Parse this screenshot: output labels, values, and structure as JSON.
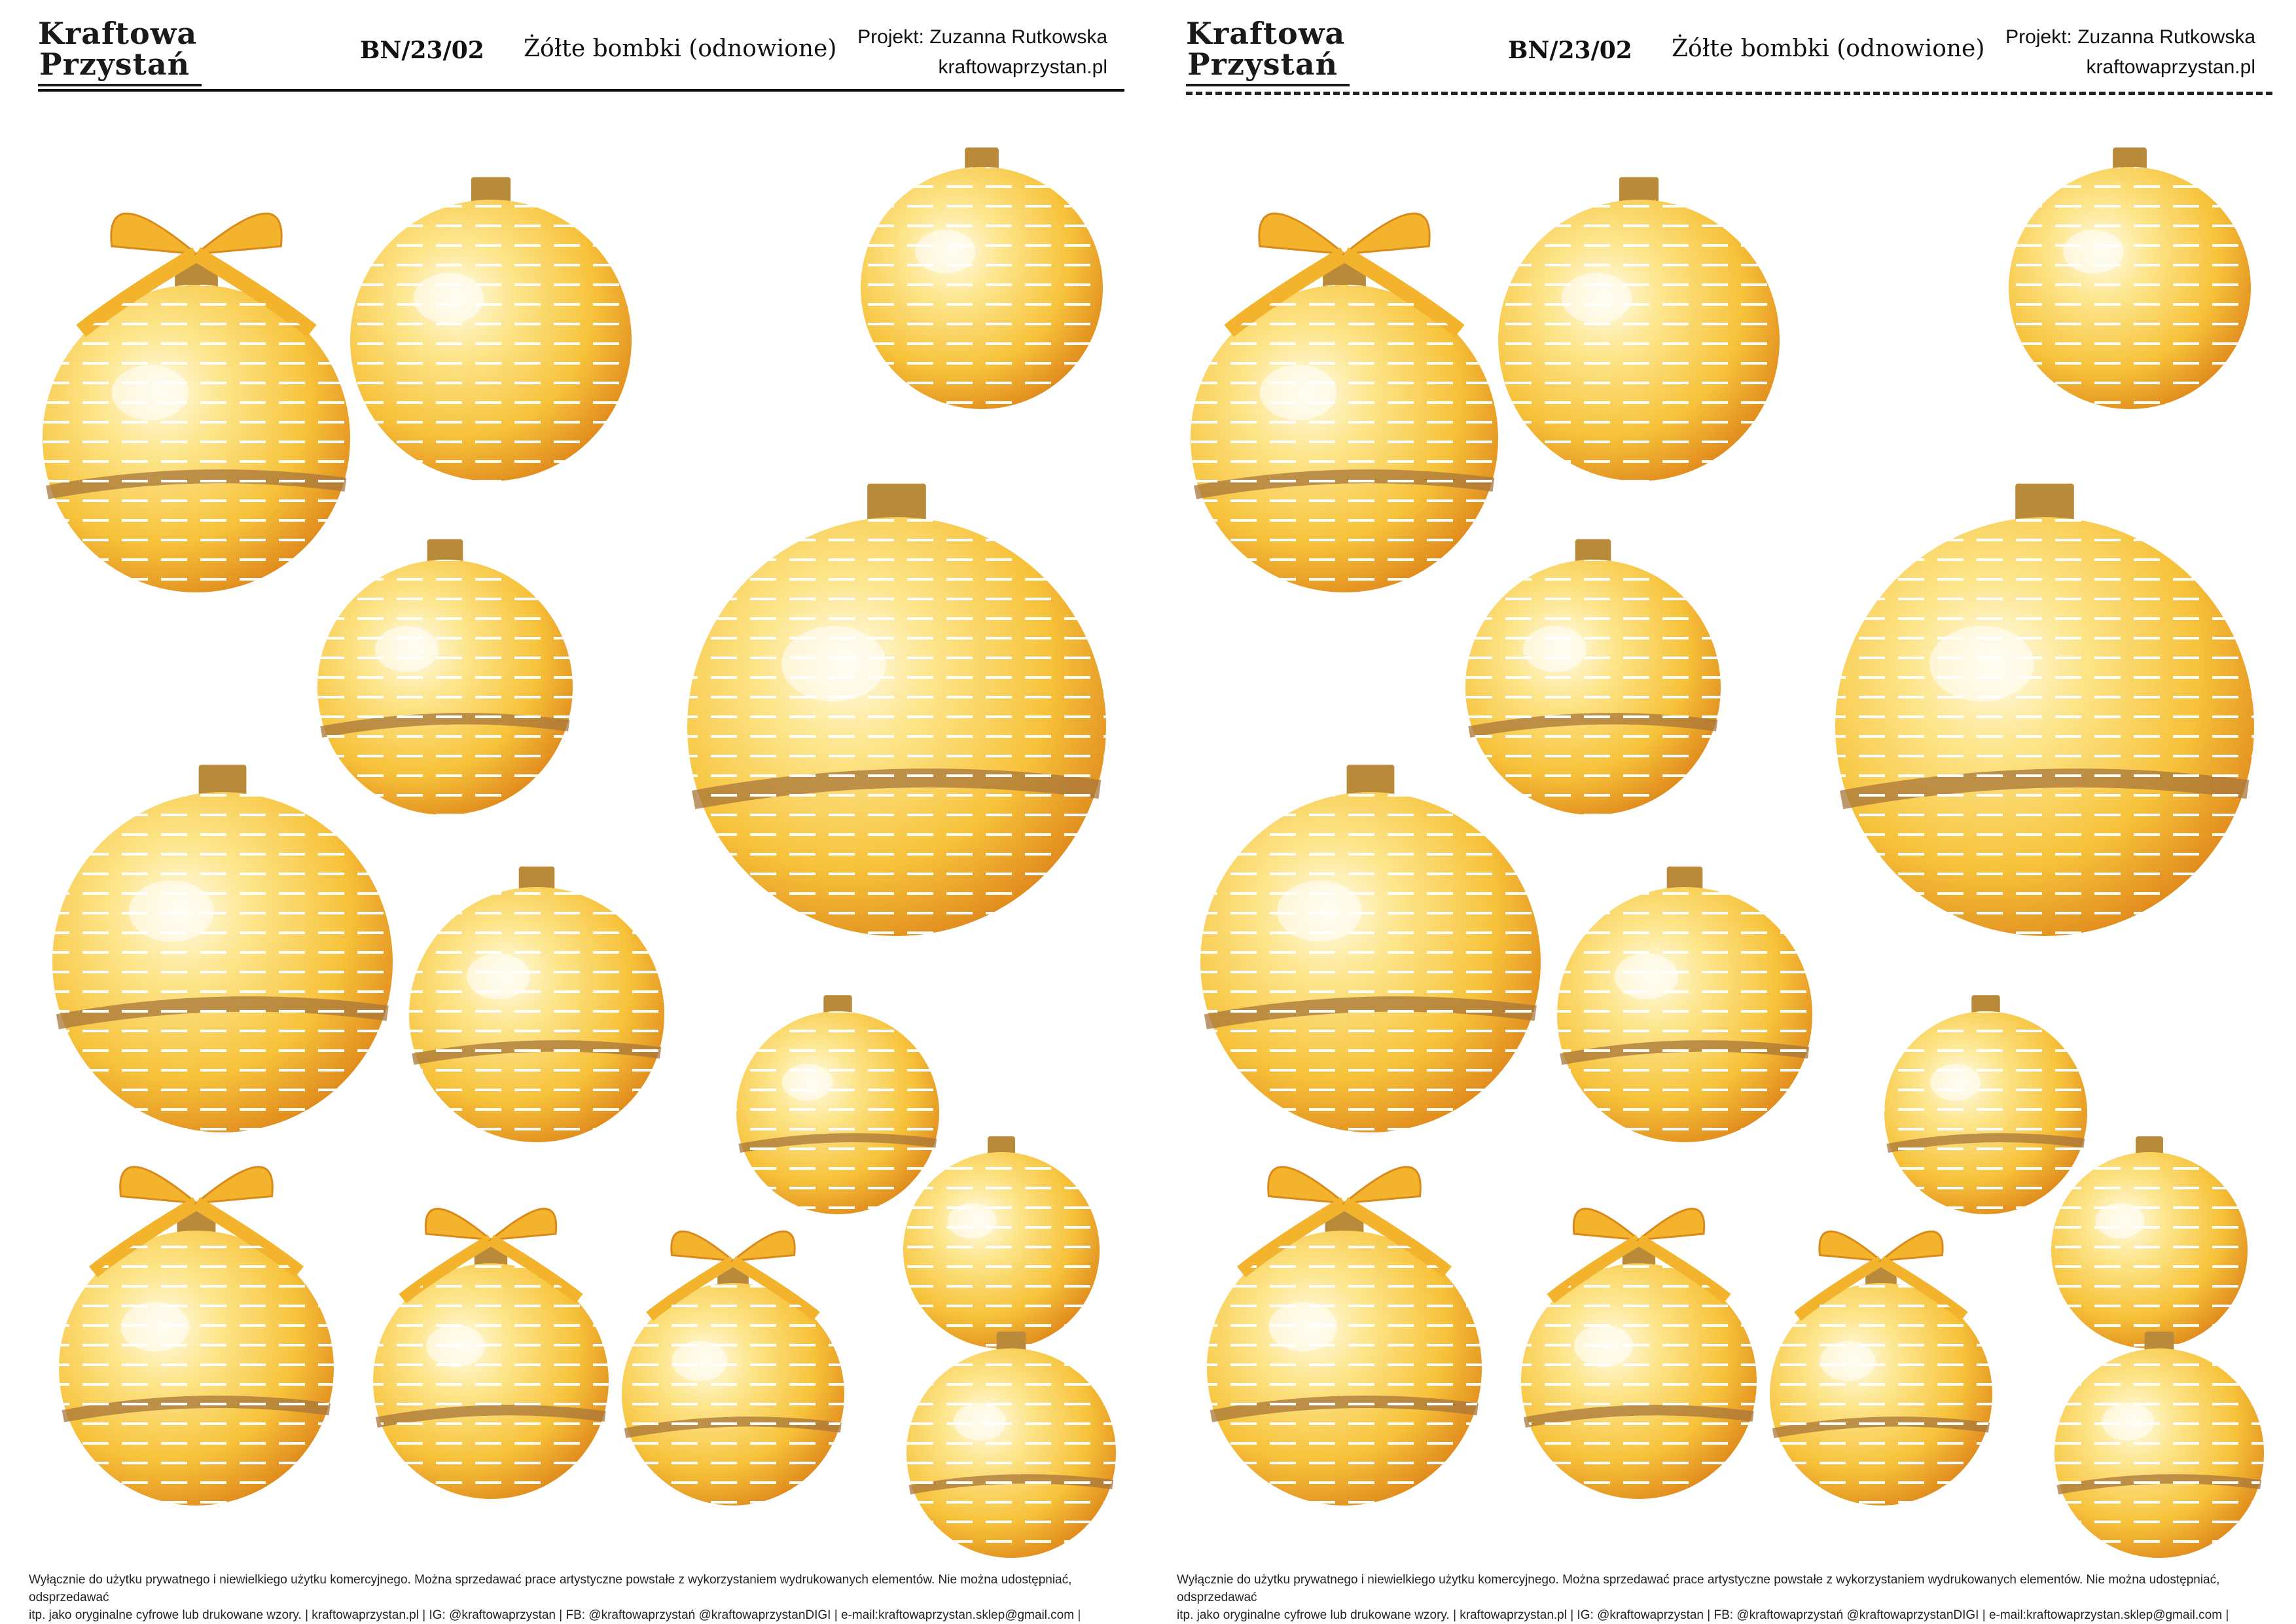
{
  "sheets": [
    {
      "logo_line1": "Kraftowa",
      "logo_line2": "Przystań",
      "code": "BN/23/02",
      "title": "Żółte bombki (odnowione)",
      "project": "Projekt: Zuzanna Rutkowska",
      "website": "kraftowaprzystan.pl",
      "footer_line1": "Wyłącznie do użytku prywatnego i niewielkiego użytku komercyjnego. Można sprzedawać prace artystyczne powstałe z wykorzystaniem wydrukowanych elementów. Nie można udostępniać, odsprzedawać",
      "footer_line2": "itp. jako oryginalne cyfrowe lub drukowane wzory.  |  kraftowaprzystan.pl  |  IG: @kraftowaprzystan  |  FB: @kraftowaprzystań @kraftowaprzystanDIGI  |  e-mail:kraftowaprzystan.sklep@gmail.com  |"
    },
    {
      "logo_line1": "Kraftowa",
      "logo_line2": "Przystań",
      "code": "BN/23/02",
      "title": "Żółte bombki (odnowione)",
      "project": "Projekt: Zuzanna Rutkowska",
      "website": "kraftowaprzystan.pl",
      "footer_line1": "Wyłącznie do użytku prywatnego i niewielkiego użytku komercyjnego. Można sprzedawać prace artystyczne powstałe z wykorzystaniem wydrukowanych elementów. Nie można udostępniać, odsprzedawać",
      "footer_line2": "itp. jako oryginalne cyfrowe lub drukowane wzory.  |  kraftowaprzystan.pl  |  IG: @kraftowaprzystan  |  FB: @kraftowaprzystań @kraftowaprzystanDIGI  |  e-mail:kraftowaprzystan.sklep@gmail.com  |"
    }
  ],
  "colors": {
    "gold_light": "#fde58a",
    "gold_mid": "#f7c23a",
    "gold_deep": "#e08a1c",
    "cap": "#b88a3a",
    "ribbon": "#f4b32c",
    "ink": "#111111"
  }
}
